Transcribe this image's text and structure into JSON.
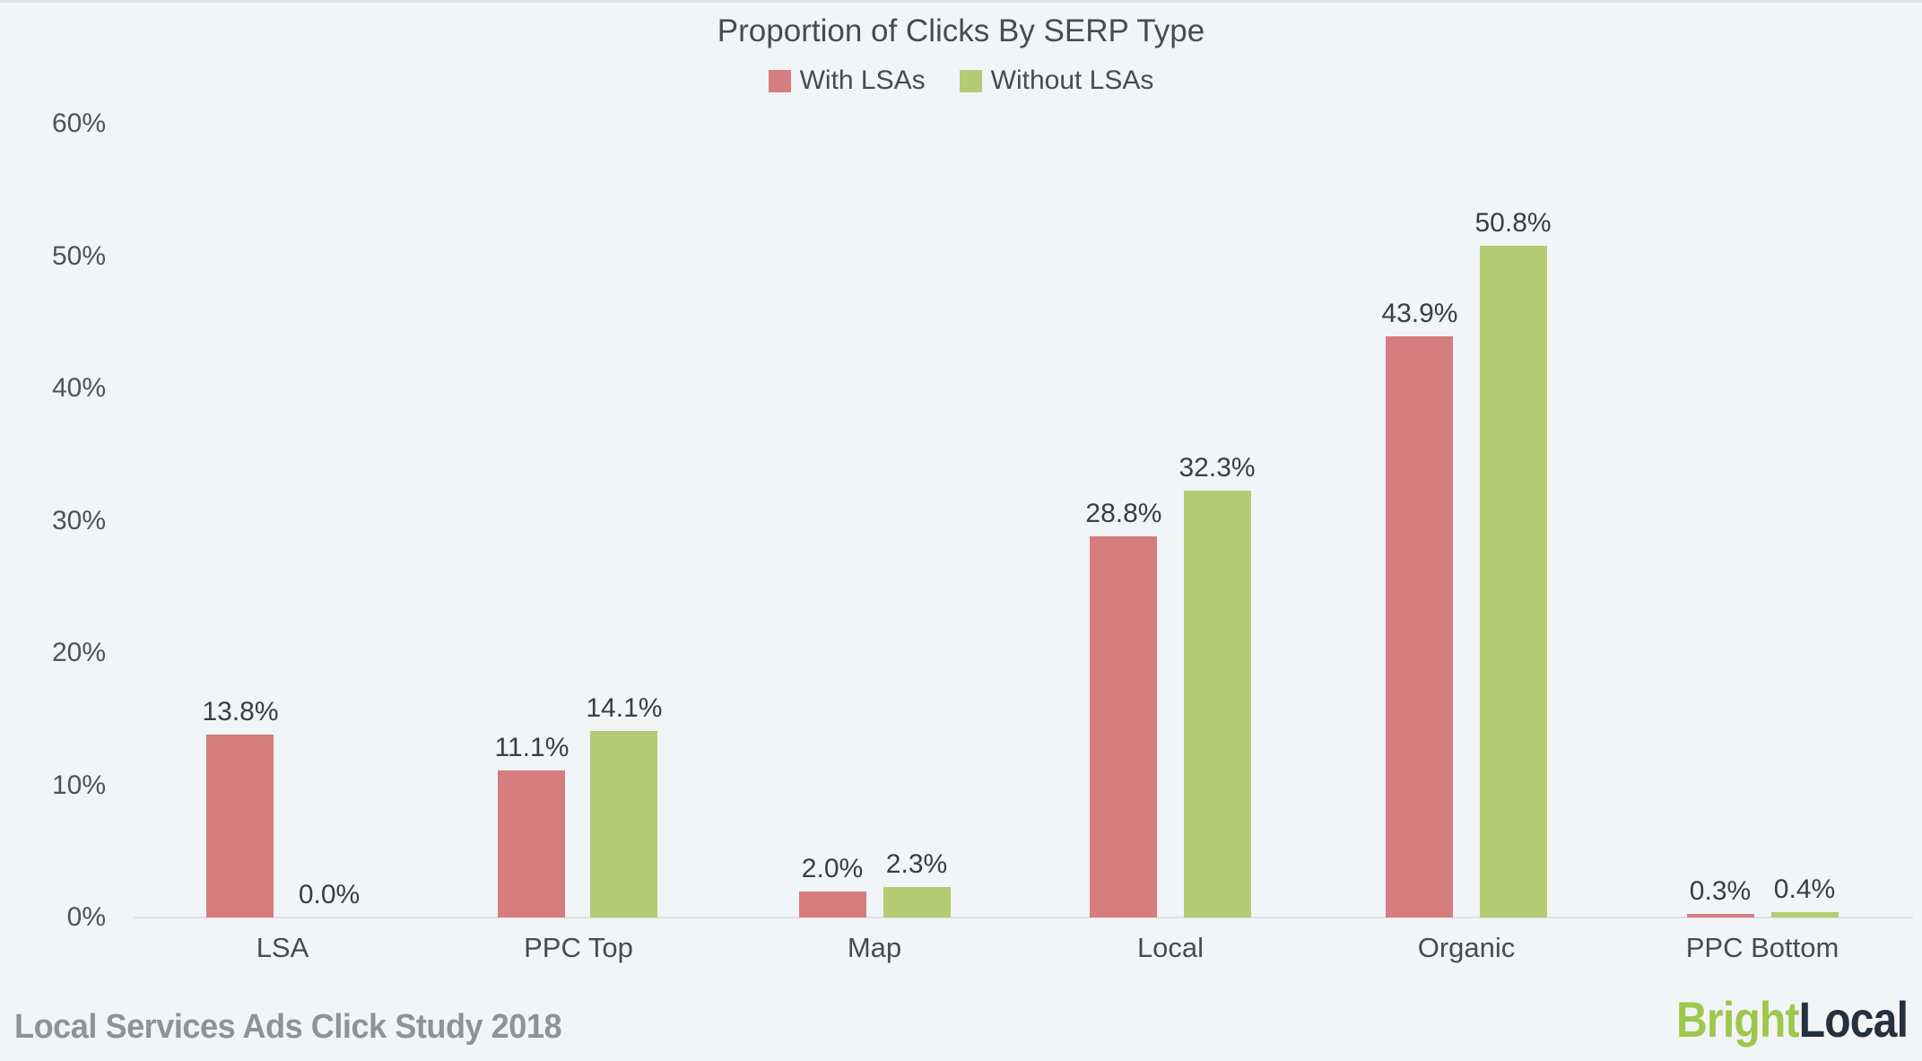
{
  "title": "Proportion of Clicks By SERP Type",
  "chart_data": {
    "type": "bar",
    "categories": [
      "LSA",
      "PPC Top",
      "Map",
      "Local",
      "Organic",
      "PPC Bottom"
    ],
    "series": [
      {
        "name": "With LSAs",
        "color": "#d67d7d",
        "values": [
          13.8,
          11.1,
          2.0,
          28.8,
          43.9,
          0.3
        ]
      },
      {
        "name": "Without LSAs",
        "color": "#b3cc73",
        "values": [
          0.0,
          14.1,
          2.3,
          32.3,
          50.8,
          0.4
        ]
      }
    ],
    "value_label_suffix": "%",
    "value_label_decimals": 1,
    "xlabel": "",
    "ylabel": "",
    "ylim": [
      0,
      60
    ],
    "yticks": [
      "0%",
      "10%",
      "20%",
      "30%",
      "40%",
      "50%",
      "60%"
    ],
    "grid": false,
    "legend_position": "top center",
    "background_color": "#f1f5f8",
    "axis_line_color": "#dde0e3"
  },
  "footer": {
    "caption": "Local Services Ads Click Study 2018"
  },
  "logo": {
    "part1": "Bright",
    "part2": "Local",
    "part1_color": "#9dc84b",
    "part2_color": "#25313f"
  }
}
